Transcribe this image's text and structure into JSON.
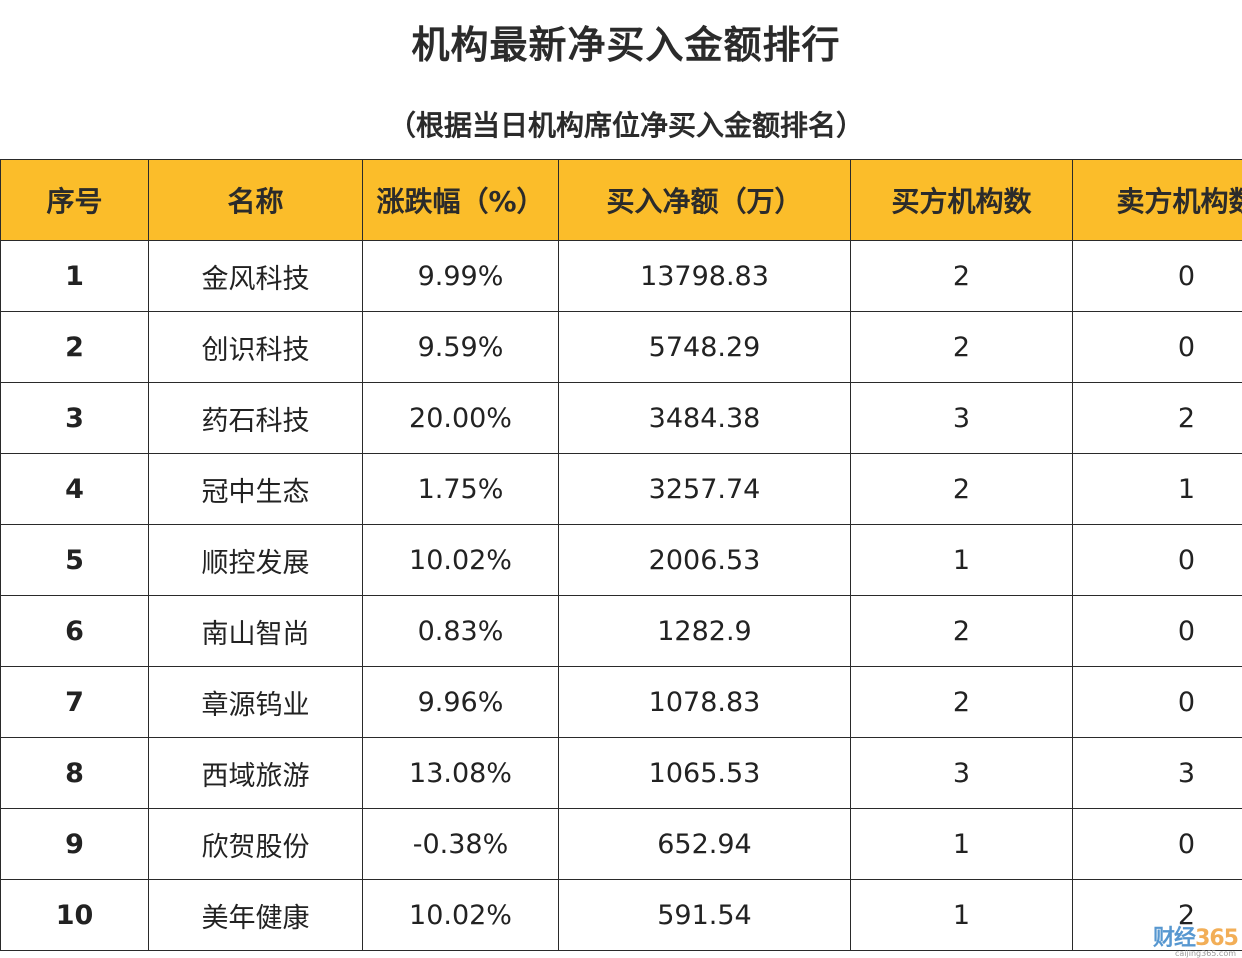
{
  "title": "机构最新净买入金额排行",
  "subtitle": "（根据当日机构席位净买入金额排名）",
  "table": {
    "headers": [
      "序号",
      "名称",
      "涨跌幅（%）",
      "买入净额（万）",
      "买方机构数",
      "卖方机构数"
    ],
    "rows": [
      [
        "1",
        "金风科技",
        "9.99%",
        "13798.83",
        "2",
        "0"
      ],
      [
        "2",
        "创识科技",
        "9.59%",
        "5748.29",
        "2",
        "0"
      ],
      [
        "3",
        "药石科技",
        "20.00%",
        "3484.38",
        "3",
        "2"
      ],
      [
        "4",
        "冠中生态",
        "1.75%",
        "3257.74",
        "2",
        "1"
      ],
      [
        "5",
        "顺控发展",
        "10.02%",
        "2006.53",
        "1",
        "0"
      ],
      [
        "6",
        "南山智尚",
        "0.83%",
        "1282.9",
        "2",
        "0"
      ],
      [
        "7",
        "章源钨业",
        "9.96%",
        "1078.83",
        "2",
        "0"
      ],
      [
        "8",
        "西域旅游",
        "13.08%",
        "1065.53",
        "3",
        "3"
      ],
      [
        "9",
        "欣贺股份",
        "-0.38%",
        "652.94",
        "1",
        "0"
      ],
      [
        "10",
        "美年健康",
        "10.02%",
        "591.54",
        "1",
        "2"
      ]
    ]
  },
  "watermark": {
    "brand_cn": "财经",
    "brand_num": "365",
    "url": "caijing365.com"
  },
  "colors": {
    "header_bg": "#fbbd2a",
    "border": "#2a2a2a"
  }
}
